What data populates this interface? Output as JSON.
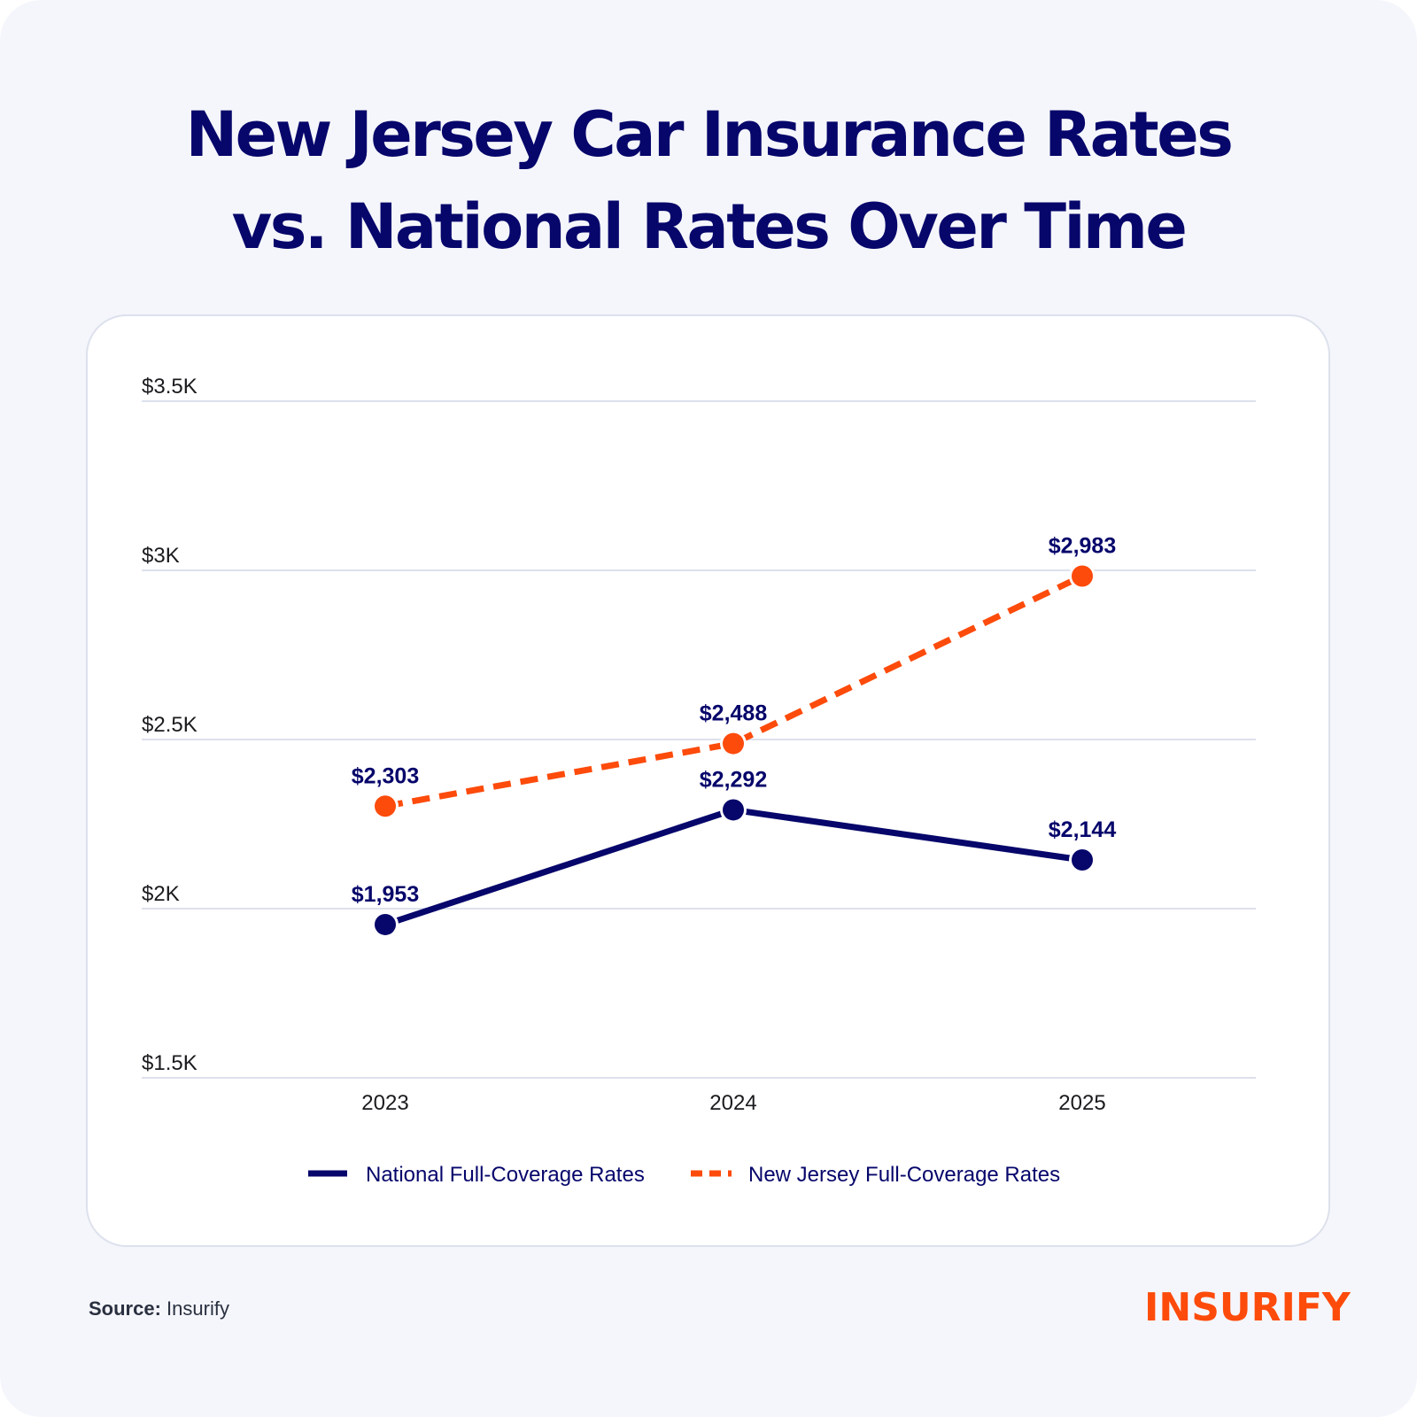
{
  "title_lines": [
    "New Jersey Car Insurance Rates",
    "vs. National Rates Over Time"
  ],
  "source": {
    "label": "Source:",
    "value": "Insurify"
  },
  "logo": {
    "text": "INSURIFY",
    "color": "#fd4b0b"
  },
  "colors": {
    "national": "#06066b",
    "new_jersey": "#fd4b0b",
    "grid": "#dde1ec",
    "background": "#f5f6fb"
  },
  "chart_data": {
    "type": "line",
    "title": "New Jersey Car Insurance Rates vs. National Rates Over Time",
    "xlabel": "",
    "ylabel": "",
    "x": [
      "2023",
      "2024",
      "2025"
    ],
    "ylim": [
      1500,
      3500
    ],
    "yticks": [
      1500,
      2000,
      2500,
      3000,
      3500
    ],
    "ytick_labels": [
      "$1.5K",
      "$2K",
      "$2.5K",
      "$3K",
      "$3.5K"
    ],
    "grid": true,
    "legend_position": "bottom-center",
    "series": [
      {
        "name": "National Full-Coverage Rates",
        "style": "solid",
        "color": "#06066b",
        "values": [
          1953,
          2292,
          2144
        ],
        "labels": [
          "$1,953",
          "$2,292",
          "$2,144"
        ]
      },
      {
        "name": "New Jersey Full-Coverage Rates",
        "style": "dashed",
        "color": "#fd4b0b",
        "values": [
          2303,
          2488,
          2983
        ],
        "labels": [
          "$2,303",
          "$2,488",
          "$2,983"
        ]
      }
    ]
  }
}
